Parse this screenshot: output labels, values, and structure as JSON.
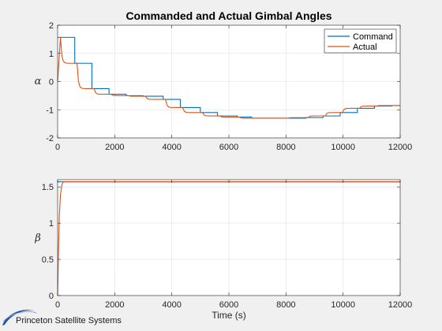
{
  "chart_data": [
    {
      "type": "line",
      "title": "Commanded and Actual Gimbal Angles",
      "ylabel": "α",
      "xlabel": "",
      "xlim": [
        0,
        12000
      ],
      "ylim": [
        -2,
        2
      ],
      "xticks": [
        "0",
        "2000",
        "4000",
        "6000",
        "8000",
        "10000",
        "12000"
      ],
      "yticks": [
        "-2",
        "-1",
        "0",
        "1",
        "2"
      ],
      "grid": true,
      "legend_position": "top-right",
      "series": [
        {
          "name": "Command",
          "color": "#0072BD",
          "x": [
            0,
            600,
            600,
            1200,
            1200,
            1800,
            1800,
            2400,
            2400,
            3000,
            3000,
            3700,
            3700,
            4300,
            4300,
            5000,
            5000,
            5600,
            5600,
            6300,
            6300,
            6800,
            6800,
            7400,
            7400,
            8000,
            8000,
            8700,
            8700,
            9300,
            9300,
            9900,
            9900,
            10500,
            10500,
            11100,
            11100,
            11700,
            11700,
            12000
          ],
          "y": [
            1.57,
            1.57,
            0.65,
            0.65,
            -0.25,
            -0.25,
            -0.45,
            -0.45,
            -0.5,
            -0.5,
            -0.52,
            -0.52,
            -0.63,
            -0.63,
            -0.92,
            -0.92,
            -1.1,
            -1.1,
            -1.22,
            -1.22,
            -1.26,
            -1.26,
            -1.3,
            -1.3,
            -1.3,
            -1.3,
            -1.3,
            -1.3,
            -1.28,
            -1.28,
            -1.22,
            -1.22,
            -1.1,
            -1.1,
            -0.95,
            -0.95,
            -0.87,
            -0.87,
            -0.85,
            -0.85
          ]
        },
        {
          "name": "Actual",
          "color": "#D95319",
          "x": [
            0,
            100,
            680,
            1280,
            1880,
            2480,
            3080,
            3780,
            4380,
            5080,
            5680,
            6380,
            6880,
            7480,
            8080,
            8780,
            9380,
            9980,
            10580,
            11180,
            11780,
            12000
          ],
          "y": [
            0,
            1.57,
            0.65,
            -0.25,
            -0.45,
            -0.5,
            -0.52,
            -0.63,
            -0.92,
            -1.1,
            -1.22,
            -1.26,
            -1.3,
            -1.3,
            -1.3,
            -1.28,
            -1.22,
            -1.1,
            -0.95,
            -0.87,
            -0.85,
            -0.85
          ],
          "step": "first-order"
        }
      ]
    },
    {
      "type": "line",
      "title": "",
      "ylabel": "β",
      "xlabel": "Time (s)",
      "xlim": [
        0,
        12000
      ],
      "ylim": [
        0,
        1.6
      ],
      "xticks": [
        "0",
        "2000",
        "4000",
        "6000",
        "8000",
        "10000",
        "12000"
      ],
      "yticks": [
        "0",
        "0.5",
        "1",
        "1.5"
      ],
      "grid": true,
      "series": [
        {
          "color": "#0072BD",
          "x": [
            0,
            12000
          ],
          "y": [
            1.5708,
            1.5708
          ]
        },
        {
          "color": "#D95319",
          "x": [
            0,
            30,
            60,
            100,
            150,
            200,
            12000
          ],
          "y": [
            0,
            0.6,
            1.1,
            1.4,
            1.53,
            1.5708,
            1.5708
          ]
        }
      ]
    }
  ],
  "logo": {
    "text": "Princeton Satellite Systems",
    "color": "#1f4e9c"
  }
}
